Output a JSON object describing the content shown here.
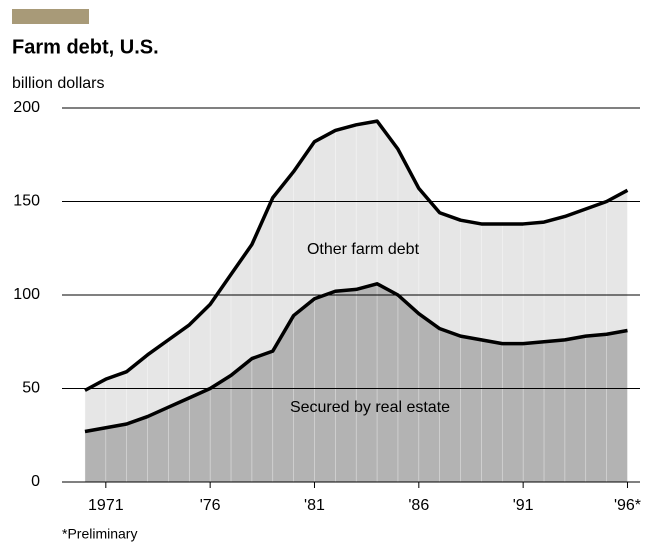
{
  "chart_data": {
    "type": "stacked_area",
    "title": "Farm debt, U.S.",
    "y_label": "billion dollars",
    "footnote": "*Preliminary",
    "x": [
      1970,
      1971,
      1972,
      1973,
      1974,
      1975,
      1976,
      1977,
      1978,
      1979,
      1980,
      1981,
      1982,
      1983,
      1984,
      1985,
      1986,
      1987,
      1988,
      1989,
      1990,
      1991,
      1992,
      1993,
      1994,
      1995,
      1996
    ],
    "series": [
      {
        "name": "Secured by real estate",
        "color": "#b3b3b3",
        "values": [
          27,
          29,
          31,
          35,
          40,
          45,
          50,
          57,
          66,
          70,
          89,
          98,
          102,
          103,
          106,
          100,
          90,
          82,
          78,
          76,
          74,
          74,
          75,
          76,
          78,
          79,
          81
        ]
      },
      {
        "name": "Other farm debt",
        "color": "#e6e6e6",
        "values": [
          22,
          26,
          28,
          33,
          36,
          39,
          45,
          54,
          61,
          82,
          77,
          84,
          86,
          88,
          87,
          78,
          67,
          62,
          62,
          62,
          64,
          64,
          64,
          66,
          68,
          71,
          75
        ]
      }
    ],
    "xlim": [
      1968.9,
      1996.6
    ],
    "xticks": [
      1971,
      {
        "value": 1976,
        "label": "'76"
      },
      {
        "value": 1981,
        "label": "'81"
      },
      {
        "value": 1986,
        "label": "'86"
      },
      {
        "value": 1991,
        "label": "'91"
      },
      {
        "value": 1996,
        "label": "'96*"
      }
    ],
    "ylim": [
      0,
      200
    ],
    "yticks": [
      0,
      50,
      100,
      150,
      200
    ],
    "grid": true
  }
}
